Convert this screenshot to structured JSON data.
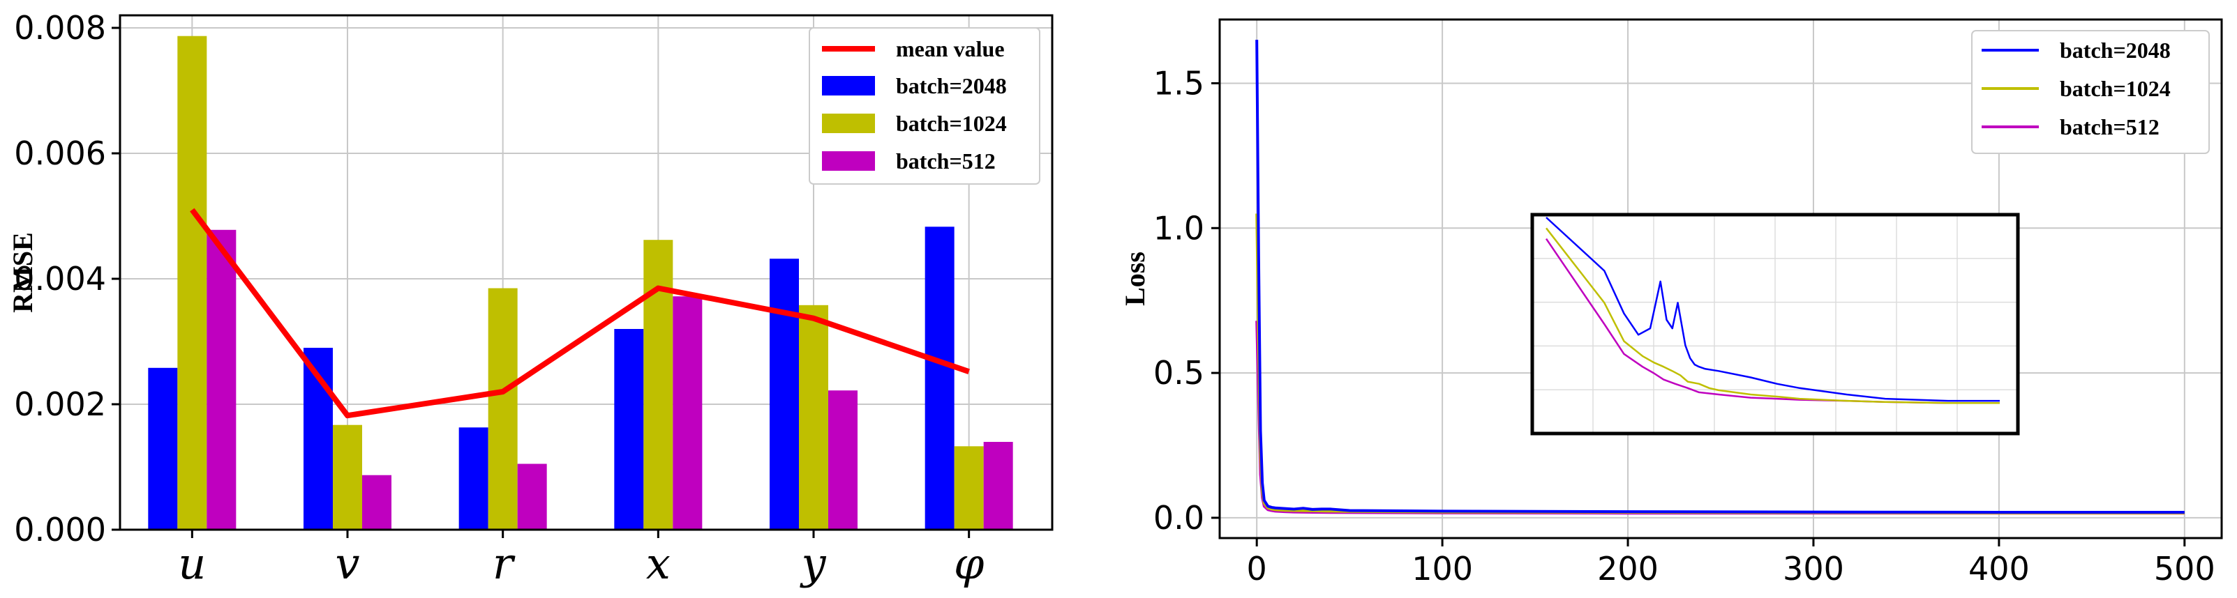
{
  "colors": {
    "blue": "#0000ff",
    "olive": "#bfbf00",
    "magenta": "#bf00bf",
    "red": "#ff0000",
    "grid": "#c8c8c8"
  },
  "chart_data": [
    {
      "type": "bar",
      "title": "",
      "xlabel": "",
      "ylabel": "RMSE",
      "ylim": [
        0,
        0.0082
      ],
      "yticks": [
        "0.000",
        "0.002",
        "0.004",
        "0.006",
        "0.008"
      ],
      "ytick_values": [
        0,
        0.002,
        0.004,
        0.006,
        0.008
      ],
      "categories": [
        "u",
        "v",
        "r",
        "x",
        "y",
        "φ"
      ],
      "series": [
        {
          "name": "batch=2048",
          "color": "#0000ff",
          "values": [
            0.00258,
            0.0029,
            0.00163,
            0.0032,
            0.00432,
            0.00483
          ]
        },
        {
          "name": "batch=1024",
          "color": "#bfbf00",
          "values": [
            0.00787,
            0.00167,
            0.00385,
            0.00462,
            0.00358,
            0.00133
          ]
        },
        {
          "name": "batch=512",
          "color": "#bf00bf",
          "values": [
            0.00478,
            0.00087,
            0.00105,
            0.00372,
            0.00222,
            0.0014
          ]
        }
      ],
      "mean_line": {
        "name": "mean value",
        "color": "#ff0000",
        "values": [
          0.0051,
          0.00182,
          0.0022,
          0.00385,
          0.00337,
          0.00252
        ]
      },
      "legend": [
        "mean value",
        "batch=2048",
        "batch=1024",
        "batch=512"
      ],
      "legend_position": "top-right",
      "grid": true
    },
    {
      "type": "line",
      "title": "",
      "xlabel": "",
      "ylabel": "Loss",
      "xlim": [
        -20,
        520
      ],
      "ylim": [
        -0.07,
        1.72
      ],
      "xticks": [
        "0",
        "100",
        "200",
        "300",
        "400",
        "500"
      ],
      "xtick_values": [
        0,
        100,
        200,
        300,
        400,
        500
      ],
      "yticks": [
        "0.0",
        "0.5",
        "1.0",
        "1.5"
      ],
      "ytick_values": [
        0,
        0.5,
        1.0,
        1.5
      ],
      "series": [
        {
          "name": "batch=2048",
          "color": "#0000ff",
          "x": [
            0,
            1,
            2,
            3,
            4,
            6,
            8,
            10,
            15,
            20,
            25,
            30,
            35,
            40,
            50,
            100,
            200,
            300,
            400,
            500
          ],
          "y": [
            1.65,
            0.9,
            0.3,
            0.12,
            0.06,
            0.04,
            0.036,
            0.034,
            0.032,
            0.03,
            0.033,
            0.029,
            0.03,
            0.03,
            0.025,
            0.023,
            0.021,
            0.02,
            0.019,
            0.019
          ]
        },
        {
          "name": "batch=1024",
          "color": "#bfbf00",
          "x": [
            0,
            1,
            2,
            3,
            4,
            6,
            8,
            10,
            15,
            20,
            30,
            50,
            100,
            200,
            300,
            400,
            500
          ],
          "y": [
            1.05,
            0.6,
            0.22,
            0.09,
            0.05,
            0.034,
            0.03,
            0.028,
            0.026,
            0.025,
            0.024,
            0.022,
            0.02,
            0.019,
            0.018,
            0.017,
            0.017
          ]
        },
        {
          "name": "batch=512",
          "color": "#bf00bf",
          "x": [
            0,
            1,
            2,
            3,
            4,
            6,
            8,
            10,
            15,
            20,
            30,
            50,
            100,
            200,
            300,
            400,
            500
          ],
          "y": [
            0.68,
            0.4,
            0.15,
            0.07,
            0.04,
            0.028,
            0.025,
            0.023,
            0.021,
            0.02,
            0.019,
            0.018,
            0.017,
            0.016,
            0.016,
            0.016,
            0.016
          ]
        }
      ],
      "inset": {
        "description": "zoomed view of early loss curves",
        "series": [
          {
            "name": "batch=2048",
            "color": "#0000ff",
            "x": [
              0,
              0.3,
              0.6,
              0.9,
              1.2,
              1.5,
              1.7,
              1.9,
              2.1,
              2.4,
              2.6,
              2.8,
              3.0,
              3.3,
              4,
              6,
              8,
              10,
              15,
              20,
              30,
              40
            ],
            "y": [
              1.0,
              0.75,
              0.55,
              0.45,
              0.48,
              0.7,
              0.52,
              0.48,
              0.6,
              0.4,
              0.34,
              0.31,
              0.3,
              0.29,
              0.28,
              0.25,
              0.22,
              0.2,
              0.17,
              0.15,
              0.14,
              0.14
            ]
          },
          {
            "name": "batch=1024",
            "color": "#bfbf00",
            "x": [
              0,
              0.3,
              0.6,
              1.0,
              1.3,
              1.6,
              1.9,
              2.2,
              2.5,
              3.0,
              3.5,
              4,
              6,
              8,
              10,
              15,
              20,
              30,
              40
            ],
            "y": [
              0.95,
              0.6,
              0.42,
              0.35,
              0.32,
              0.3,
              0.28,
              0.26,
              0.23,
              0.22,
              0.2,
              0.19,
              0.17,
              0.16,
              0.15,
              0.14,
              0.135,
              0.13,
              0.13
            ]
          },
          {
            "name": "batch=512",
            "color": "#bf00bf",
            "x": [
              0,
              0.3,
              0.6,
              1.0,
              1.3,
              1.6,
              2.0,
              2.5,
              3.0,
              4,
              6,
              8,
              10,
              15,
              20,
              30,
              40
            ],
            "y": [
              0.9,
              0.5,
              0.36,
              0.3,
              0.27,
              0.24,
              0.22,
              0.2,
              0.18,
              0.17,
              0.155,
              0.15,
              0.145,
              0.14,
              0.135,
              0.13,
              0.13
            ]
          }
        ]
      },
      "legend": [
        "batch=2048",
        "batch=1024",
        "batch=512"
      ],
      "legend_position": "top-right",
      "grid": true
    }
  ]
}
